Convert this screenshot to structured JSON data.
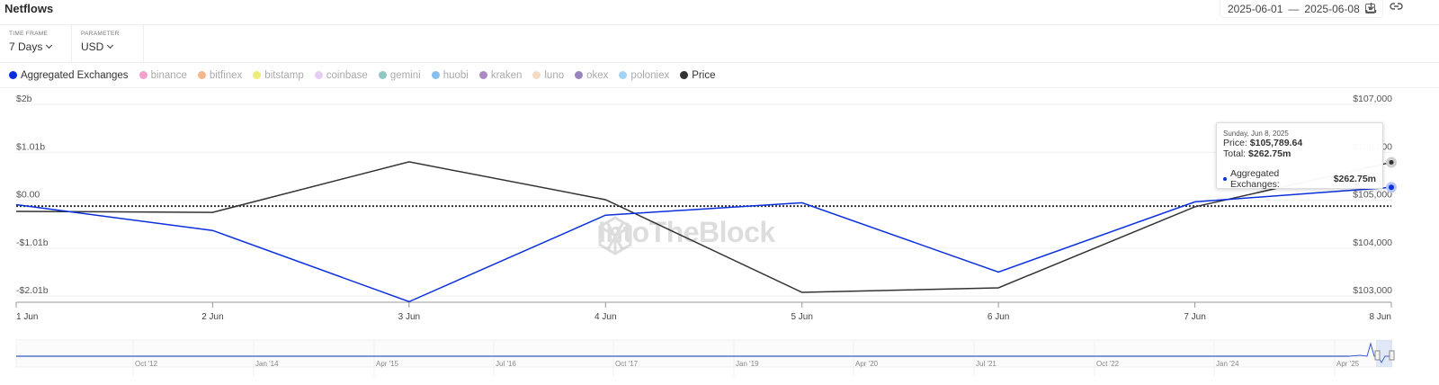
{
  "header": {
    "title": "Netflows",
    "date_from": "2025-06-01",
    "date_sep": "—",
    "date_to": "2025-06-08",
    "download_icon": "download-icon",
    "link_icon": "link-icon"
  },
  "controls": {
    "time_frame": {
      "label": "TIME FRAME",
      "value": "7 Days"
    },
    "parameter": {
      "label": "PARAMETER",
      "value": "USD"
    }
  },
  "legend": [
    {
      "label": "Aggregated Exchanges",
      "color": "#0a2fdb",
      "active": true
    },
    {
      "label": "binance",
      "color": "#f3a0cc",
      "active": false
    },
    {
      "label": "bitfinex",
      "color": "#f2b88c",
      "active": false
    },
    {
      "label": "bitstamp",
      "color": "#ecec7a",
      "active": false
    },
    {
      "label": "coinbase",
      "color": "#e6cdf3",
      "active": false
    },
    {
      "label": "gemini",
      "color": "#8ec7c3",
      "active": false
    },
    {
      "label": "huobi",
      "color": "#86bff0",
      "active": false
    },
    {
      "label": "kraken",
      "color": "#a88bc4",
      "active": false
    },
    {
      "label": "luno",
      "color": "#f2dcc4",
      "active": false
    },
    {
      "label": "okex",
      "color": "#9a84be",
      "active": false
    },
    {
      "label": "poloniex",
      "color": "#a4d4f4",
      "active": false
    },
    {
      "label": "Price",
      "color": "#333333",
      "active": true
    }
  ],
  "tooltip": {
    "date": "Sunday, Jun 8, 2025",
    "price_label": "Price:",
    "price_value": "$105,789.64",
    "total_label": "Total:",
    "total_value": "$262.75m",
    "series_label": "Aggregated Exchanges:",
    "series_value": "$262.75m"
  },
  "watermark": "IntoTheBlock",
  "navigator": {
    "labels": [
      "Oct '12",
      "Jan '14",
      "Apr '15",
      "Jul '16",
      "Oct '17",
      "Jan '19",
      "Apr '20",
      "Jul '21",
      "Oct '22",
      "Jan '24",
      "Apr '25"
    ]
  },
  "chart_data": {
    "type": "line",
    "title": "Netflows",
    "categories": [
      "1 Jun",
      "2 Jun",
      "3 Jun",
      "4 Jun",
      "5 Jun",
      "6 Jun",
      "7 Jun",
      "8 Jun"
    ],
    "series": [
      {
        "name": "Aggregated Exchanges",
        "axis": "left",
        "unit": "USD billions",
        "color": "#0a2fdb",
        "values": [
          -0.1,
          -0.64,
          -2.13,
          -0.32,
          -0.06,
          -1.51,
          -0.04,
          0.26275
        ]
      },
      {
        "name": "Price",
        "axis": "right",
        "unit": "USD",
        "color": "#333333",
        "values": [
          104765,
          104745,
          105800,
          105010,
          103075,
          103170,
          104860,
          105789.64
        ]
      }
    ],
    "left_axis": {
      "ticks": [
        "$2b",
        "$1.01b",
        "$0.00",
        "-$1.01b",
        "-$2.01b"
      ],
      "values": [
        2.0,
        1.01,
        0,
        -1.01,
        -2.01
      ],
      "ylim": [
        -2.01,
        2.0
      ]
    },
    "right_axis": {
      "ticks": [
        "$107,000",
        "$106,000",
        "$105,000",
        "$104,000",
        "$103,000"
      ],
      "values": [
        107000,
        106000,
        105000,
        104000,
        103000
      ],
      "ylim": [
        103000,
        107000
      ]
    },
    "reference_line": {
      "style": "dotted",
      "approx_value_left": -0.13
    },
    "grid": true,
    "legend_position": "top"
  }
}
